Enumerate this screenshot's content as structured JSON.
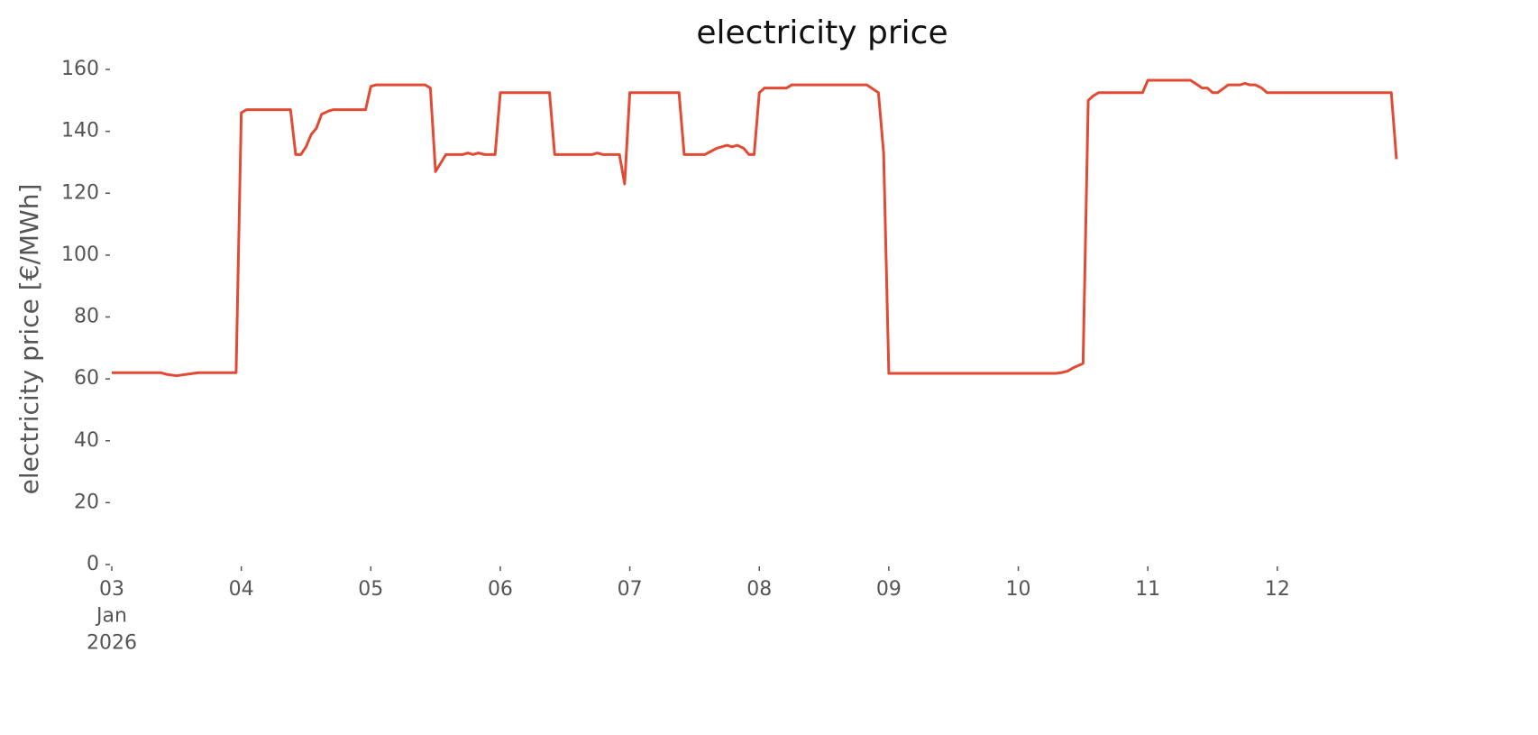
{
  "chart_data": {
    "type": "line",
    "title": "electricity price",
    "ylabel": "electricity price [€/MWh]",
    "x": [
      3.0,
      3.38,
      3.42,
      3.5,
      3.58,
      3.67,
      3.96,
      4.0,
      4.04,
      4.38,
      4.42,
      4.46,
      4.5,
      4.54,
      4.58,
      4.62,
      4.67,
      4.71,
      4.96,
      5.0,
      5.04,
      5.42,
      5.46,
      5.5,
      5.58,
      5.71,
      5.75,
      5.79,
      5.83,
      5.88,
      5.96,
      6.0,
      6.38,
      6.42,
      6.71,
      6.75,
      6.79,
      6.92,
      6.96,
      7.0,
      7.38,
      7.42,
      7.58,
      7.67,
      7.71,
      7.75,
      7.79,
      7.83,
      7.88,
      7.92,
      7.96,
      8.0,
      8.04,
      8.21,
      8.25,
      8.83,
      8.92,
      8.96,
      9.0,
      9.71,
      10.29,
      10.33,
      10.38,
      10.42,
      10.5,
      10.54,
      10.58,
      10.62,
      10.67,
      10.96,
      11.0,
      11.33,
      11.42,
      11.46,
      11.5,
      11.54,
      11.62,
      11.71,
      11.75,
      11.79,
      11.83,
      11.88,
      11.92,
      12.88,
      12.92
    ],
    "series": [
      {
        "name": "electricity price",
        "color": "#e24a33",
        "values": [
          62,
          62,
          61.5,
          61,
          61.5,
          62,
          62,
          146,
          147,
          147,
          132.5,
          132.5,
          135,
          139,
          141,
          145.5,
          146.5,
          147,
          147,
          154.5,
          155,
          155,
          154,
          127,
          132.5,
          132.5,
          133,
          132.5,
          133,
          132.5,
          132.5,
          152.5,
          152.5,
          132.5,
          132.5,
          133,
          132.5,
          132.5,
          123,
          152.5,
          152.5,
          132.5,
          132.5,
          134.5,
          135,
          135.5,
          135,
          135.5,
          134.5,
          132.5,
          132.5,
          152.5,
          154,
          154,
          155,
          155,
          152.5,
          133,
          61.8,
          61.8,
          61.8,
          62,
          62.5,
          63.5,
          65,
          150,
          151.5,
          152.5,
          152.5,
          152.5,
          156.5,
          156.5,
          154,
          154,
          152.5,
          152.5,
          155,
          155,
          155.5,
          155,
          155,
          154,
          152.5,
          152.5,
          131
        ]
      }
    ],
    "xlim": [
      3,
      12.92
    ],
    "ylim": [
      0,
      160
    ],
    "xticks": [
      {
        "value": 3,
        "label": "03\nJan\n2026"
      },
      {
        "value": 4,
        "label": "04"
      },
      {
        "value": 5,
        "label": "05"
      },
      {
        "value": 6,
        "label": "06"
      },
      {
        "value": 7,
        "label": "07"
      },
      {
        "value": 8,
        "label": "08"
      },
      {
        "value": 9,
        "label": "09"
      },
      {
        "value": 10,
        "label": "10"
      },
      {
        "value": 11,
        "label": "11"
      },
      {
        "value": 12,
        "label": "12"
      }
    ],
    "yticks": [
      0,
      20,
      40,
      60,
      80,
      100,
      120,
      140,
      160
    ],
    "grid": false
  }
}
